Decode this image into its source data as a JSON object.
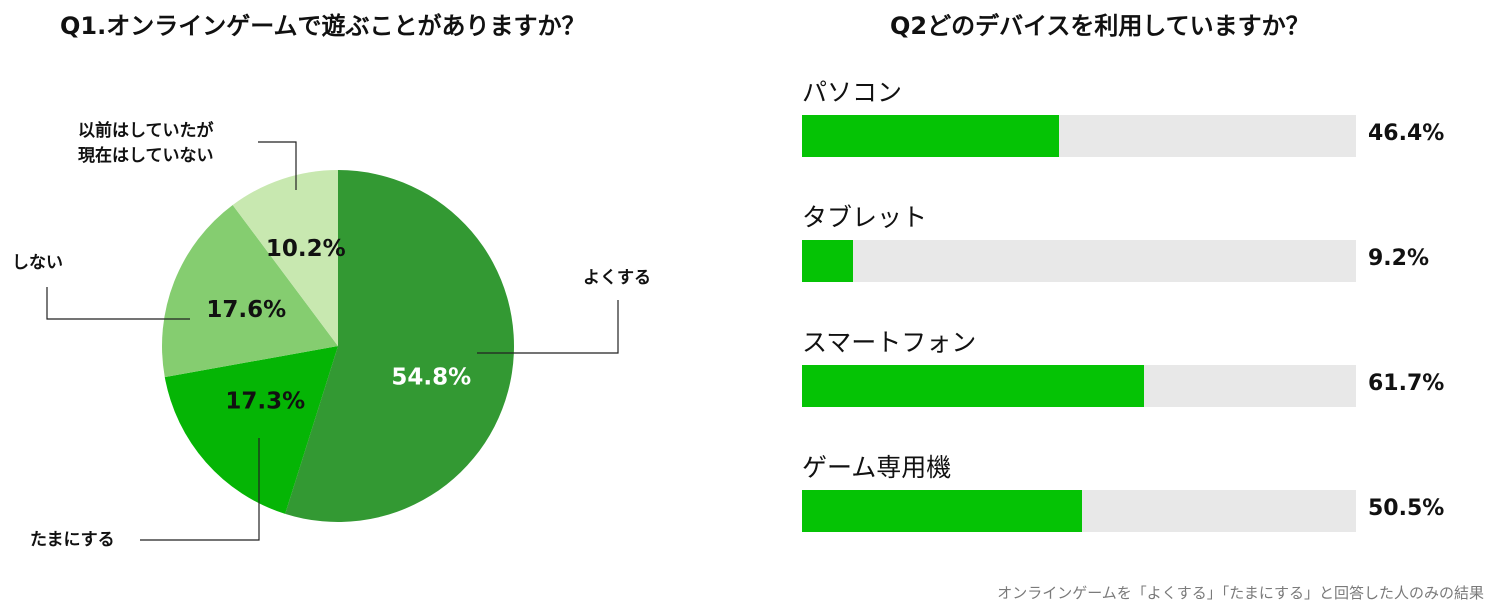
{
  "q1": {
    "title": "Q1.オンラインゲームで遊ぶことがありますか？"
  },
  "q2": {
    "title": "Q2どのデバイスを利用していますか？"
  },
  "footnote": "オンラインゲームを「よくする」「たまにする」と回答した人のみの結果",
  "colors": {
    "bar_fill": "#05c305",
    "bar_track": "#e8e8e8",
    "slice_often": "#339933",
    "slice_sometimes": "#05b505",
    "slice_no": "#85cd70",
    "slice_before": "#c8e8b0"
  },
  "chart_data": [
    {
      "type": "pie",
      "title": "Q1.オンラインゲームで遊ぶことがありますか？",
      "slices": [
        {
          "label": "よくする",
          "value": 54.8,
          "value_label": "54.8%",
          "color": "#339933",
          "value_color": "#ffffff"
        },
        {
          "label": "たまにする",
          "value": 17.3,
          "value_label": "17.3%",
          "color": "#05b505",
          "value_color": "#111111"
        },
        {
          "label": "しない",
          "value": 17.6,
          "value_label": "17.6%",
          "color": "#85cd70",
          "value_color": "#111111"
        },
        {
          "label": "以前はしていたが\n現在はしていない",
          "value": 10.2,
          "value_label": "10.2%",
          "color": "#c8e8b0",
          "value_color": "#111111"
        }
      ]
    },
    {
      "type": "bar",
      "orientation": "horizontal",
      "title": "Q2どのデバイスを利用していますか？",
      "xlim": [
        0,
        100
      ],
      "categories": [
        "パソコン",
        "タブレット",
        "スマートフォン",
        "ゲーム専用機"
      ],
      "values": [
        46.4,
        9.2,
        61.7,
        50.5
      ],
      "value_labels": [
        "46.4%",
        "9.2%",
        "61.7%",
        "50.5%"
      ]
    }
  ]
}
